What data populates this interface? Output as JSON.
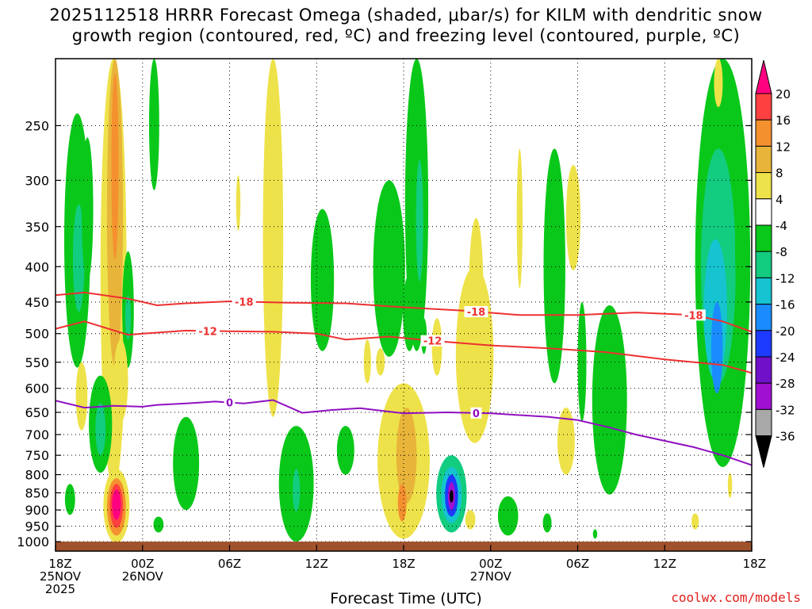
{
  "title": {
    "line1": "2025112518 HRRR Forecast Omega (shaded, μbar/s) for KILM with dendritic snow",
    "line2": "growth region (contoured, red, ºC) and freezing level (contoured, purple, ºC)"
  },
  "credit": "coolwx.com/models",
  "chart_data": {
    "type": "time-height contour",
    "xlabel": "Forecast Time (UTC)",
    "ylabel": "Pressure (hPa)",
    "x_ticks": [
      {
        "hour": 0,
        "label": [
          "18Z",
          "25NOV",
          "2025"
        ]
      },
      {
        "hour": 6,
        "label": [
          "00Z",
          "26NOV"
        ]
      },
      {
        "hour": 12,
        "label": [
          "06Z"
        ]
      },
      {
        "hour": 18,
        "label": [
          "12Z"
        ]
      },
      {
        "hour": 24,
        "label": [
          "18Z"
        ]
      },
      {
        "hour": 30,
        "label": [
          "00Z",
          "27NOV"
        ]
      },
      {
        "hour": 36,
        "label": [
          "06Z"
        ]
      },
      {
        "hour": 42,
        "label": [
          "12Z"
        ]
      },
      {
        "hour": 48,
        "label": [
          "18Z"
        ]
      }
    ],
    "xlim": [
      0,
      48
    ],
    "y_ticks": [
      250,
      300,
      350,
      400,
      450,
      500,
      550,
      600,
      650,
      700,
      750,
      800,
      850,
      900,
      950,
      1000
    ],
    "ylim": [
      200,
      1000
    ],
    "colorbar": {
      "labels": [
        "20",
        "16",
        "12",
        "8",
        "4",
        "-4",
        "-8",
        "-12",
        "-16",
        "-20",
        "-24",
        "-28",
        "-32",
        "-36"
      ],
      "colors": [
        "#ff0080",
        "#ff4040",
        "#f5902f",
        "#e8b43a",
        "#eee24a",
        "#ffffff",
        "#0ac81a",
        "#12cc80",
        "#15c4d0",
        "#1a8cff",
        "#1d3aff",
        "#7010c8",
        "#a010d0",
        "#a8a8a8",
        "#000000"
      ]
    },
    "contours": [
      {
        "name": "dgz-top",
        "label": "-18",
        "color": "#ee3030",
        "points": [
          [
            0,
            440
          ],
          [
            2,
            436
          ],
          [
            5,
            445
          ],
          [
            7,
            455
          ],
          [
            9,
            452
          ],
          [
            12,
            449
          ],
          [
            16,
            451
          ],
          [
            20,
            452
          ],
          [
            24,
            458
          ],
          [
            28,
            463
          ],
          [
            32,
            470
          ],
          [
            36,
            470
          ],
          [
            40,
            466
          ],
          [
            44,
            470
          ],
          [
            46,
            480
          ],
          [
            48,
            497
          ]
        ]
      },
      {
        "name": "dgz-bottom",
        "label": "-12",
        "color": "#ee3030",
        "points": [
          [
            0,
            492
          ],
          [
            2,
            480
          ],
          [
            5,
            502
          ],
          [
            6,
            500
          ],
          [
            9,
            495
          ],
          [
            12,
            496
          ],
          [
            15,
            497
          ],
          [
            18,
            500
          ],
          [
            20,
            510
          ],
          [
            23,
            505
          ],
          [
            26,
            512
          ],
          [
            30,
            520
          ],
          [
            34,
            525
          ],
          [
            38,
            532
          ],
          [
            42,
            545
          ],
          [
            46,
            555
          ],
          [
            48,
            570
          ]
        ]
      },
      {
        "name": "freezing-level",
        "label": "0",
        "color": "#9010c0",
        "points": [
          [
            0,
            625
          ],
          [
            2,
            640
          ],
          [
            4,
            636
          ],
          [
            6,
            638
          ],
          [
            7,
            634
          ],
          [
            9,
            631
          ],
          [
            11,
            627
          ],
          [
            13,
            631
          ],
          [
            15,
            624
          ],
          [
            17,
            651
          ],
          [
            19,
            645
          ],
          [
            21,
            641
          ],
          [
            24,
            652
          ],
          [
            27,
            650
          ],
          [
            30,
            652
          ],
          [
            34,
            660
          ],
          [
            36,
            667
          ],
          [
            38,
            682
          ],
          [
            40,
            700
          ],
          [
            44,
            730
          ],
          [
            46,
            750
          ],
          [
            48,
            775
          ]
        ]
      }
    ],
    "omega_blobs": [
      {
        "t": 1.5,
        "p": 400,
        "rt": 0.9,
        "rp": 160,
        "v": -6
      },
      {
        "t": 1.6,
        "p": 395,
        "rt": 0.4,
        "rp": 70,
        "v": -9
      },
      {
        "t": 2.2,
        "p": 340,
        "rt": 0.4,
        "rp": 80,
        "v": -5
      },
      {
        "t": 4.0,
        "p": 390,
        "rt": 0.9,
        "rp": 450,
        "v": 5
      },
      {
        "t": 4.1,
        "p": 330,
        "rt": 0.55,
        "rp": 230,
        "v": 9
      },
      {
        "t": 4.1,
        "p": 300,
        "rt": 0.25,
        "rp": 90,
        "v": 13
      },
      {
        "t": 5.0,
        "p": 470,
        "rt": 0.4,
        "rp": 90,
        "v": -6
      },
      {
        "t": 5.0,
        "p": 475,
        "rt": 0.2,
        "rp": 35,
        "v": -9
      },
      {
        "t": 4.5,
        "p": 590,
        "rt": 0.5,
        "rp": 80,
        "v": 5
      },
      {
        "t": 1.8,
        "p": 620,
        "rt": 0.4,
        "rp": 70,
        "v": 5
      },
      {
        "t": 6.8,
        "p": 220,
        "rt": 0.35,
        "rp": 90,
        "v": -5
      },
      {
        "t": 3.1,
        "p": 685,
        "rt": 0.8,
        "rp": 110,
        "v": -6
      },
      {
        "t": 3.1,
        "p": 690,
        "rt": 0.35,
        "rp": 60,
        "v": -10
      },
      {
        "t": 1.0,
        "p": 870,
        "rt": 0.35,
        "rp": 45,
        "v": -6
      },
      {
        "t": 4.2,
        "p": 895,
        "rt": 0.9,
        "rp": 110,
        "v": 6
      },
      {
        "t": 4.2,
        "p": 895,
        "rt": 0.65,
        "rp": 85,
        "v": 12
      },
      {
        "t": 4.2,
        "p": 890,
        "rt": 0.45,
        "rp": 65,
        "v": 17
      },
      {
        "t": 4.2,
        "p": 885,
        "rt": 0.3,
        "rp": 45,
        "v": 22
      },
      {
        "t": 7.1,
        "p": 945,
        "rt": 0.35,
        "rp": 25,
        "v": -6
      },
      {
        "t": 9.0,
        "p": 780,
        "rt": 0.9,
        "rp": 120,
        "v": -6
      },
      {
        "t": 12.6,
        "p": 325,
        "rt": 0.15,
        "rp": 30,
        "v": 5
      },
      {
        "t": 15.0,
        "p": 400,
        "rt": 0.7,
        "rp": 260,
        "v": 5
      },
      {
        "t": 15.0,
        "p": 330,
        "rt": 0.35,
        "rp": 80,
        "v": 6
      },
      {
        "t": 18.4,
        "p": 430,
        "rt": 0.8,
        "rp": 100,
        "v": -6
      },
      {
        "t": 21.5,
        "p": 550,
        "rt": 0.25,
        "rp": 40,
        "v": 5
      },
      {
        "t": 16.6,
        "p": 840,
        "rt": 1.2,
        "rp": 160,
        "v": -6
      },
      {
        "t": 16.6,
        "p": 845,
        "rt": 0.25,
        "rp": 60,
        "v": -10
      },
      {
        "t": 20.0,
        "p": 740,
        "rt": 0.6,
        "rp": 60,
        "v": -6
      },
      {
        "t": 23.0,
        "p": 420,
        "rt": 1.1,
        "rp": 120,
        "v": -6
      },
      {
        "t": 24.9,
        "p": 360,
        "rt": 0.8,
        "rp": 170,
        "v": -6
      },
      {
        "t": 25.1,
        "p": 350,
        "rt": 0.25,
        "rp": 70,
        "v": -9
      },
      {
        "t": 24.4,
        "p": 470,
        "rt": 0.45,
        "rp": 60,
        "v": -6
      },
      {
        "t": 22.4,
        "p": 550,
        "rt": 0.3,
        "rp": 25,
        "v": 5
      },
      {
        "t": 24.0,
        "p": 790,
        "rt": 1.8,
        "rp": 200,
        "v": 6
      },
      {
        "t": 24.2,
        "p": 760,
        "rt": 0.7,
        "rp": 120,
        "v": 10
      },
      {
        "t": 23.9,
        "p": 880,
        "rt": 0.3,
        "rp": 55,
        "v": 12
      },
      {
        "t": 26.3,
        "p": 525,
        "rt": 0.35,
        "rp": 50,
        "v": 5
      },
      {
        "t": 25.4,
        "p": 505,
        "rt": 0.2,
        "rp": 30,
        "v": -6
      },
      {
        "t": 27.3,
        "p": 860,
        "rt": 1.05,
        "rp": 110,
        "v": -8
      },
      {
        "t": 27.3,
        "p": 860,
        "rt": 0.7,
        "rp": 80,
        "v": -14
      },
      {
        "t": 27.3,
        "p": 860,
        "rt": 0.45,
        "rp": 60,
        "v": -22
      },
      {
        "t": 27.3,
        "p": 860,
        "rt": 0.25,
        "rp": 40,
        "v": -30
      },
      {
        "t": 27.3,
        "p": 860,
        "rt": 0.13,
        "rp": 18,
        "v": -38
      },
      {
        "t": 28.6,
        "p": 930,
        "rt": 0.35,
        "rp": 30,
        "v": 5
      },
      {
        "t": 28.9,
        "p": 560,
        "rt": 1.3,
        "rp": 160,
        "v": 5
      },
      {
        "t": 29.0,
        "p": 450,
        "rt": 0.5,
        "rp": 110,
        "v": 6
      },
      {
        "t": 32.0,
        "p": 350,
        "rt": 0.2,
        "rp": 80,
        "v": 5
      },
      {
        "t": 31.2,
        "p": 920,
        "rt": 0.7,
        "rp": 60,
        "v": -6
      },
      {
        "t": 34.4,
        "p": 430,
        "rt": 0.75,
        "rp": 160,
        "v": -6
      },
      {
        "t": 35.7,
        "p": 345,
        "rt": 0.5,
        "rp": 60,
        "v": 5
      },
      {
        "t": 33.9,
        "p": 940,
        "rt": 0.3,
        "rp": 30,
        "v": -6
      },
      {
        "t": 35.2,
        "p": 720,
        "rt": 0.6,
        "rp": 80,
        "v": 5
      },
      {
        "t": 36.3,
        "p": 560,
        "rt": 0.3,
        "rp": 110,
        "v": -6
      },
      {
        "t": 37.6,
        "p": 720,
        "rt": 0.3,
        "rp": 70,
        "v": 5
      },
      {
        "t": 38.2,
        "p": 655,
        "rt": 1.2,
        "rp": 200,
        "v": -6
      },
      {
        "t": 46.0,
        "p": 480,
        "rt": 1.9,
        "rp": 300,
        "v": -6
      },
      {
        "t": 45.7,
        "p": 430,
        "rt": 1.2,
        "rp": 160,
        "v": -10
      },
      {
        "t": 45.5,
        "p": 475,
        "rt": 0.8,
        "rp": 110,
        "v": -13
      },
      {
        "t": 45.6,
        "p": 530,
        "rt": 0.4,
        "rp": 80,
        "v": -17
      },
      {
        "t": 47.2,
        "p": 380,
        "rt": 0.35,
        "rp": 100,
        "v": -6
      },
      {
        "t": 45.7,
        "p": 210,
        "rt": 0.3,
        "rp": 25,
        "v": 5
      },
      {
        "t": 44.1,
        "p": 935,
        "rt": 0.25,
        "rp": 25,
        "v": 5
      },
      {
        "t": 46.5,
        "p": 830,
        "rt": 0.15,
        "rp": 35,
        "v": 5
      },
      {
        "t": 37.2,
        "p": 975,
        "rt": 0.15,
        "rp": 15,
        "v": -6
      }
    ]
  }
}
